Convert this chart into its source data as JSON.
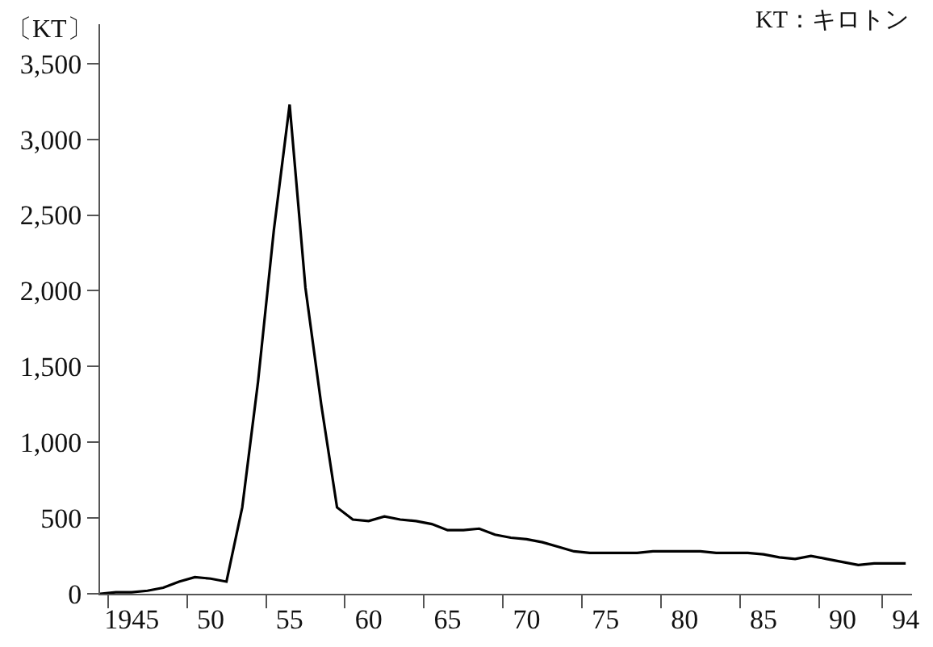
{
  "chart_data": {
    "type": "line",
    "ylabel": "〔KT〕",
    "annotations": [
      "KT：キロトン"
    ],
    "x": [
      1943,
      1944,
      1945,
      1946,
      1947,
      1948,
      1949,
      1950,
      1951,
      1952,
      1953,
      1954,
      1955,
      1956,
      1957,
      1958,
      1959,
      1960,
      1961,
      1962,
      1963,
      1964,
      1965,
      1966,
      1967,
      1968,
      1969,
      1970,
      1971,
      1972,
      1973,
      1974,
      1975,
      1976,
      1977,
      1978,
      1979,
      1980,
      1981,
      1982,
      1983,
      1984,
      1985,
      1986,
      1987,
      1988,
      1989,
      1990,
      1991,
      1992,
      1993,
      1994
    ],
    "series": [
      {
        "color": "#000000",
        "values": [
          0,
          10,
          10,
          20,
          40,
          80,
          110,
          100,
          80,
          570,
          1400,
          2400,
          3230,
          2020,
          1250,
          570,
          490,
          480,
          510,
          490,
          480,
          460,
          420,
          420,
          430,
          390,
          370,
          360,
          340,
          310,
          280,
          270,
          270,
          270,
          270,
          280,
          280,
          280,
          280,
          270,
          270,
          270,
          260,
          240,
          230,
          250,
          230,
          210,
          190,
          200,
          200,
          200
        ]
      }
    ],
    "xlim": [
      1943,
      1994.4
    ],
    "xticks": [
      1945,
      {
        "value": 1950,
        "label": "50"
      },
      {
        "value": 1955,
        "label": "55"
      },
      {
        "value": 1960,
        "label": "60"
      },
      {
        "value": 1965,
        "label": "65"
      },
      {
        "value": 1970,
        "label": "70"
      },
      {
        "value": 1975,
        "label": "75"
      },
      {
        "value": 1980,
        "label": "80"
      },
      {
        "value": 1985,
        "label": "85"
      },
      {
        "value": 1990,
        "label": "90"
      },
      {
        "value": 1994,
        "label": "94"
      },
      {
        "value": 1943.5,
        "label": null
      },
      {
        "value": 1948.5,
        "label": null
      },
      {
        "value": 1953.5,
        "label": null
      },
      {
        "value": 1958.5,
        "label": null
      },
      {
        "value": 1963.5,
        "label": null
      },
      {
        "value": 1968.5,
        "label": null
      },
      {
        "value": 1973.5,
        "label": null
      },
      {
        "value": 1978.5,
        "label": null
      },
      {
        "value": 1983.5,
        "label": null
      },
      {
        "value": 1988.5,
        "label": null
      },
      {
        "value": 1992.5,
        "label": null
      }
    ],
    "ylim": [
      0,
      3760
    ],
    "yticks": [
      {
        "value": 0,
        "label": "0"
      },
      {
        "value": 500,
        "label": "500"
      },
      {
        "value": 1000,
        "label": "1,000"
      },
      {
        "value": 1500,
        "label": "1,500"
      },
      {
        "value": 2000,
        "label": "2,000"
      },
      {
        "value": 2500,
        "label": "2,500"
      },
      {
        "value": 3000,
        "label": "3,000"
      },
      {
        "value": 3500,
        "label": "3,500"
      }
    ],
    "legend": false,
    "marker": "none",
    "line_style": "solid"
  }
}
